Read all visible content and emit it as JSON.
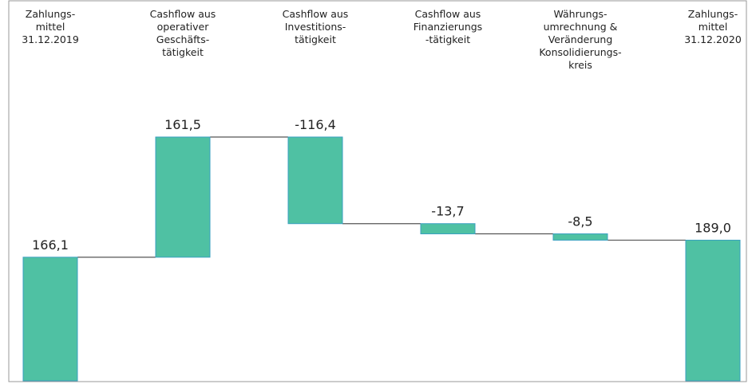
{
  "chart_data": {
    "type": "waterfall",
    "categories": [
      "Zahlungs-\nmittel\n31.12.2019",
      "Cashflow aus\noperativer\nGeschäfts-\ntätigkeit",
      "Cashflow aus\nInvestitions-\ntätigkeit",
      "Cashflow aus\nFinanzierungs\n-tätigkeit",
      "Währungs-\numrechnung &\nVeränderung\nKonsolidierungs-\nkreis",
      "Zahlungs-\nmittel\n31.12.2020"
    ],
    "values": [
      166.1,
      161.5,
      -116.4,
      -13.7,
      -8.5,
      189.0
    ],
    "value_labels": [
      "166,1",
      "161,5",
      "-116,4",
      "-13,7",
      "-8,5",
      "189,0"
    ],
    "measure": [
      "total",
      "relative",
      "relative",
      "relative",
      "relative",
      "total"
    ],
    "color": "#4fc1a3"
  }
}
